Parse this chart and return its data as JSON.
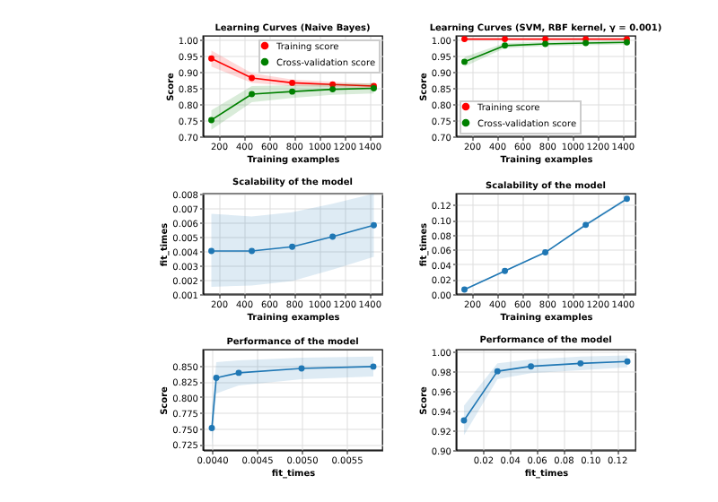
{
  "chart_data": [
    {
      "type": "line",
      "title": "Learning Curves (Naive Bayes)",
      "xlabel": "Training examples",
      "ylabel": "Score",
      "x": [
        143,
        465,
        787,
        1109,
        1437
      ],
      "marker": "circle",
      "grid": true,
      "legend": "top right",
      "series": [
        {
          "name": "Training score",
          "color": "#ff0000",
          "values": [
            0.94,
            0.88,
            0.865,
            0.86,
            0.855
          ],
          "lower": [
            0.915,
            0.865,
            0.855,
            0.852,
            0.848
          ],
          "upper": [
            0.965,
            0.895,
            0.875,
            0.868,
            0.862
          ]
        },
        {
          "name": "Cross-validation score",
          "color": "#008000",
          "values": [
            0.75,
            0.83,
            0.838,
            0.845,
            0.848
          ],
          "lower": [
            0.72,
            0.805,
            0.818,
            0.828,
            0.832
          ],
          "upper": [
            0.78,
            0.855,
            0.858,
            0.862,
            0.864
          ]
        }
      ],
      "xlim": [
        75,
        1505
      ],
      "xticks": [
        200,
        400,
        600,
        800,
        1000,
        1200,
        1400
      ],
      "ylim": [
        0.7,
        1.01
      ],
      "yticks": [
        {
          "value": 0.7,
          "label": "0.70"
        },
        {
          "value": 0.75,
          "label": "0.75"
        },
        {
          "value": 0.8,
          "label": "0.80"
        },
        {
          "value": 0.85,
          "label": "0.85"
        },
        {
          "value": 0.9,
          "label": "0.90"
        },
        {
          "value": 0.95,
          "label": "0.95"
        },
        {
          "value": 1.0,
          "label": "1.00"
        }
      ]
    },
    {
      "type": "line",
      "title": "Learning Curves (SVM, RBF kernel, γ = 0.001)",
      "xlabel": "Training examples",
      "ylabel": "Score",
      "x": [
        143,
        465,
        787,
        1109,
        1437
      ],
      "marker": "circle",
      "grid": true,
      "legend": "bottom left",
      "series": [
        {
          "name": "Training score",
          "color": "#ff0000",
          "values": [
            1.0,
            1.0,
            1.0,
            1.0,
            1.0
          ]
        },
        {
          "name": "Cross-validation score",
          "color": "#008000",
          "values": [
            0.93,
            0.98,
            0.985,
            0.988,
            0.99
          ],
          "lower": [
            0.915,
            0.972,
            0.978,
            0.981,
            0.984
          ],
          "upper": [
            0.945,
            0.988,
            0.992,
            0.995,
            0.996
          ]
        }
      ],
      "xlim": [
        75,
        1505
      ],
      "xticks": [
        200,
        400,
        600,
        800,
        1000,
        1200,
        1400
      ],
      "ylim": [
        0.7,
        1.01
      ],
      "yticks": [
        {
          "value": 0.7,
          "label": "0.70"
        },
        {
          "value": 0.75,
          "label": "0.75"
        },
        {
          "value": 0.8,
          "label": "0.80"
        },
        {
          "value": 0.85,
          "label": "0.85"
        },
        {
          "value": 0.9,
          "label": "0.90"
        },
        {
          "value": 0.95,
          "label": "0.95"
        },
        {
          "value": 1.0,
          "label": "1.00"
        }
      ]
    },
    {
      "type": "line",
      "title": "Scalability of the model",
      "xlabel": "Training examples",
      "ylabel": "fit_times",
      "x": [
        143,
        465,
        787,
        1109,
        1437
      ],
      "marker": "circle",
      "grid": true,
      "series": [
        {
          "color": "#1f77b4",
          "values": [
            0.004,
            0.004,
            0.0043,
            0.005,
            0.0058
          ],
          "lower": [
            0.0015,
            0.0016,
            0.0019,
            0.0027,
            0.0036
          ],
          "upper": [
            0.0066,
            0.0064,
            0.0067,
            0.0073,
            0.008
          ]
        }
      ],
      "xlim": [
        75,
        1505
      ],
      "xticks": [
        200,
        400,
        600,
        800,
        1000,
        1200,
        1400
      ],
      "ylim": [
        0.001,
        0.008
      ],
      "yticks": [
        {
          "value": 0.001,
          "label": "0.001"
        },
        {
          "value": 0.002,
          "label": "0.002"
        },
        {
          "value": 0.003,
          "label": "0.003"
        },
        {
          "value": 0.004,
          "label": "0.004"
        },
        {
          "value": 0.005,
          "label": "0.005"
        },
        {
          "value": 0.006,
          "label": "0.006"
        },
        {
          "value": 0.007,
          "label": "0.007"
        },
        {
          "value": 0.008,
          "label": "0.008"
        }
      ]
    },
    {
      "type": "line",
      "title": "Scalability of the model",
      "xlabel": "Training examples",
      "ylabel": "fit_times",
      "x": [
        143,
        465,
        787,
        1109,
        1437
      ],
      "marker": "circle",
      "grid": true,
      "series": [
        {
          "color": "#1f77b4",
          "values": [
            0.006,
            0.031,
            0.056,
            0.093,
            0.128
          ],
          "lower": [
            0.005,
            0.03,
            0.055,
            0.091,
            0.126
          ],
          "upper": [
            0.007,
            0.032,
            0.057,
            0.095,
            0.13
          ]
        }
      ],
      "xlim": [
        75,
        1505
      ],
      "xticks": [
        200,
        400,
        600,
        800,
        1000,
        1200,
        1400
      ],
      "ylim": [
        0.0,
        0.135
      ],
      "yticks": [
        {
          "value": 0.0,
          "label": "0.00"
        },
        {
          "value": 0.02,
          "label": "0.02"
        },
        {
          "value": 0.04,
          "label": "0.04"
        },
        {
          "value": 0.06,
          "label": "0.06"
        },
        {
          "value": 0.08,
          "label": "0.08"
        },
        {
          "value": 0.1,
          "label": "0.10"
        },
        {
          "value": 0.12,
          "label": "0.12"
        }
      ]
    },
    {
      "type": "line",
      "title": "Performance of the model",
      "xlabel": "fit_times",
      "ylabel": "Score",
      "x": [
        0.004,
        0.00405,
        0.0043,
        0.005,
        0.0058
      ],
      "marker": "circle",
      "grid": true,
      "series": [
        {
          "color": "#1f77b4",
          "values": [
            0.75,
            0.83,
            0.838,
            0.845,
            0.848
          ],
          "lower": [
            0.72,
            0.805,
            0.818,
            0.828,
            0.832
          ],
          "upper": [
            0.78,
            0.855,
            0.858,
            0.862,
            0.864
          ]
        }
      ],
      "xlim": [
        0.0039,
        0.0059
      ],
      "xticks": [
        {
          "value": 0.004,
          "label": "0.0040"
        },
        {
          "value": 0.0045,
          "label": "0.0045"
        },
        {
          "value": 0.005,
          "label": "0.0050"
        },
        {
          "value": 0.0055,
          "label": "0.0055"
        }
      ],
      "ylim": [
        0.715,
        0.875
      ],
      "yticks": [
        {
          "value": 0.725,
          "label": "0.725"
        },
        {
          "value": 0.75,
          "label": "0.750"
        },
        {
          "value": 0.775,
          "label": "0.775"
        },
        {
          "value": 0.8,
          "label": "0.800"
        },
        {
          "value": 0.825,
          "label": "0.825"
        },
        {
          "value": 0.85,
          "label": "0.850"
        }
      ]
    },
    {
      "type": "line",
      "title": "Performance of the model",
      "xlabel": "fit_times",
      "ylabel": "Score",
      "x": [
        0.006,
        0.031,
        0.056,
        0.093,
        0.128
      ],
      "marker": "circle",
      "grid": true,
      "series": [
        {
          "color": "#1f77b4",
          "values": [
            0.93,
            0.98,
            0.985,
            0.988,
            0.99
          ],
          "lower": [
            0.915,
            0.972,
            0.978,
            0.981,
            0.984
          ],
          "upper": [
            0.945,
            0.988,
            0.992,
            0.995,
            0.996
          ]
        }
      ],
      "xlim": [
        0.0,
        0.134
      ],
      "xticks": [
        {
          "value": 0.02,
          "label": "0.02"
        },
        {
          "value": 0.04,
          "label": "0.04"
        },
        {
          "value": 0.06,
          "label": "0.06"
        },
        {
          "value": 0.08,
          "label": "0.08"
        },
        {
          "value": 0.1,
          "label": "0.10"
        },
        {
          "value": 0.12,
          "label": "0.12"
        }
      ],
      "ylim": [
        0.9,
        1.002
      ],
      "yticks": [
        {
          "value": 0.9,
          "label": "0.90"
        },
        {
          "value": 0.92,
          "label": "0.92"
        },
        {
          "value": 0.94,
          "label": "0.94"
        },
        {
          "value": 0.96,
          "label": "0.96"
        },
        {
          "value": 0.98,
          "label": "0.98"
        },
        {
          "value": 1.0,
          "label": "1.00"
        }
      ]
    }
  ]
}
